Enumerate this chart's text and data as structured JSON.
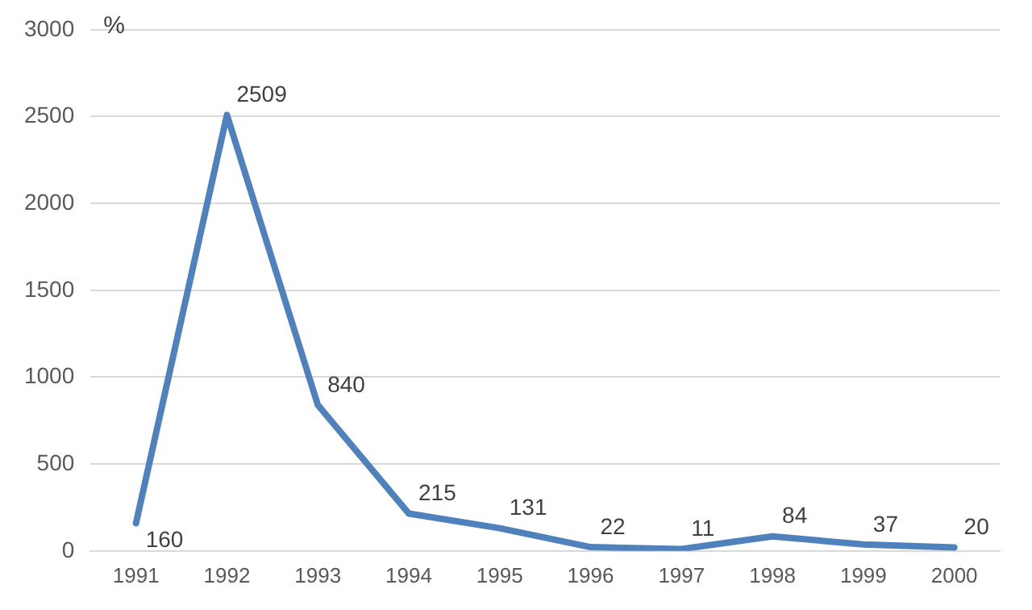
{
  "chart_data": {
    "type": "line",
    "ylabel": "%",
    "categories": [
      "1991",
      "1992",
      "1993",
      "1994",
      "1995",
      "1996",
      "1997",
      "1998",
      "1999",
      "2000"
    ],
    "values": [
      160,
      2509,
      840,
      215,
      131,
      22,
      11,
      84,
      37,
      20
    ],
    "color": "#4f81bd",
    "ylim": [
      0,
      3000
    ],
    "yticks": [
      0,
      500,
      1000,
      1500,
      2000,
      2500,
      3000
    ],
    "grid": "y",
    "data_labels": true,
    "marker": "none",
    "line_style": "solid",
    "legend": false
  }
}
